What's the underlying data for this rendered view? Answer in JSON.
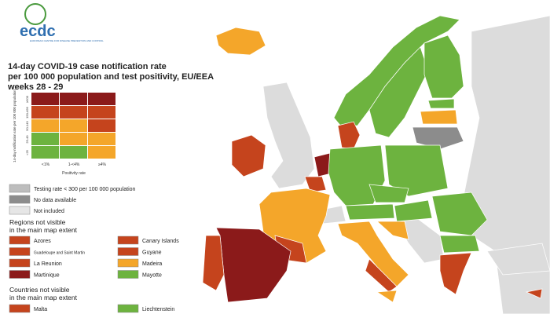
{
  "header": {
    "logo": "ecdc",
    "organisation": "EUROPEAN CENTRE FOR DISEASE PREVENTION AND CONTROL",
    "title_lines": [
      "14-day COVID-19 case notification rate",
      "per 100 000 population and test positivity, EU/EEA",
      "weeks 28 - 29"
    ]
  },
  "matrix": {
    "y_label": "14-day notification rate per 100 000 population",
    "x_label": "Positivity rate",
    "columns": [
      "<1%",
      "1-<4%",
      "≥4%"
    ],
    "rows": [
      {
        "label": "≥500",
        "colors": [
          "#8b1a1a",
          "#8b1a1a",
          "#8b1a1a"
        ]
      },
      {
        "label": "150-499",
        "colors": [
          "#c5441d",
          "#c5441d",
          "#c5441d"
        ]
      },
      {
        "label": "50-149",
        "colors": [
          "#f4a62a",
          "#f4a62a",
          "#c5441d"
        ]
      },
      {
        "label": "25-49",
        "colors": [
          "#6db33f",
          "#f4a62a",
          "#f4a62a"
        ]
      },
      {
        "label": "<25",
        "colors": [
          "#6db33f",
          "#6db33f",
          "#f4a62a"
        ]
      }
    ]
  },
  "legend": {
    "items": [
      {
        "label": "Testing rate < 300 per 100 000 population",
        "color": "#bdbdbd"
      },
      {
        "label": "No data available",
        "color": "#8c8c8c"
      },
      {
        "label": "Not included",
        "color": "#e6e6e6"
      }
    ],
    "regions": {
      "title_lines": [
        "Regions not visible",
        "in the main map extent"
      ],
      "items": [
        {
          "label": "Azores",
          "color": "#c5441d"
        },
        {
          "label": "Canary Islands",
          "color": "#c5441d"
        },
        {
          "label": "Guadeloupe and Saint Martin",
          "color": "#c5441d"
        },
        {
          "label": "Guyane",
          "color": "#c5441d"
        },
        {
          "label": "La Reunion",
          "color": "#c5441d"
        },
        {
          "label": "Madeira",
          "color": "#f4a62a"
        },
        {
          "label": "Martinique",
          "color": "#8b1a1a"
        },
        {
          "label": "Mayotte",
          "color": "#6db33f"
        }
      ]
    },
    "countries": {
      "title_lines": [
        "Countries not visible",
        "in the main map extent"
      ],
      "items": [
        {
          "label": "Malta",
          "color": "#c5441d"
        },
        {
          "label": "Liechtenstein",
          "color": "#6db33f"
        }
      ]
    }
  }
}
